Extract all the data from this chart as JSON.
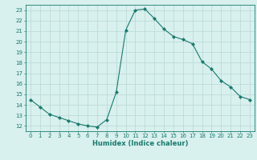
{
  "x": [
    0,
    1,
    2,
    3,
    4,
    5,
    6,
    7,
    8,
    9,
    10,
    11,
    12,
    13,
    14,
    15,
    16,
    17,
    18,
    19,
    20,
    21,
    22,
    23
  ],
  "y": [
    14.5,
    13.8,
    13.1,
    12.8,
    12.5,
    12.2,
    12.0,
    11.9,
    12.6,
    15.2,
    21.1,
    23.0,
    23.1,
    22.2,
    21.2,
    20.5,
    20.2,
    19.8,
    18.1,
    17.4,
    16.3,
    15.7,
    14.8,
    14.5
  ],
  "line_color": "#1a7a6e",
  "marker": "D",
  "marker_size": 2,
  "bg_color": "#d8f0ee",
  "grid_color": "#b8d8d4",
  "xlabel": "Humidex (Indice chaleur)",
  "xlim": [
    -0.5,
    23.5
  ],
  "ylim": [
    11.5,
    23.5
  ],
  "xticks": [
    0,
    1,
    2,
    3,
    4,
    5,
    6,
    7,
    8,
    9,
    10,
    11,
    12,
    13,
    14,
    15,
    16,
    17,
    18,
    19,
    20,
    21,
    22,
    23
  ],
  "yticks": [
    12,
    13,
    14,
    15,
    16,
    17,
    18,
    19,
    20,
    21,
    22,
    23
  ],
  "tick_fontsize": 5,
  "xlabel_fontsize": 6
}
